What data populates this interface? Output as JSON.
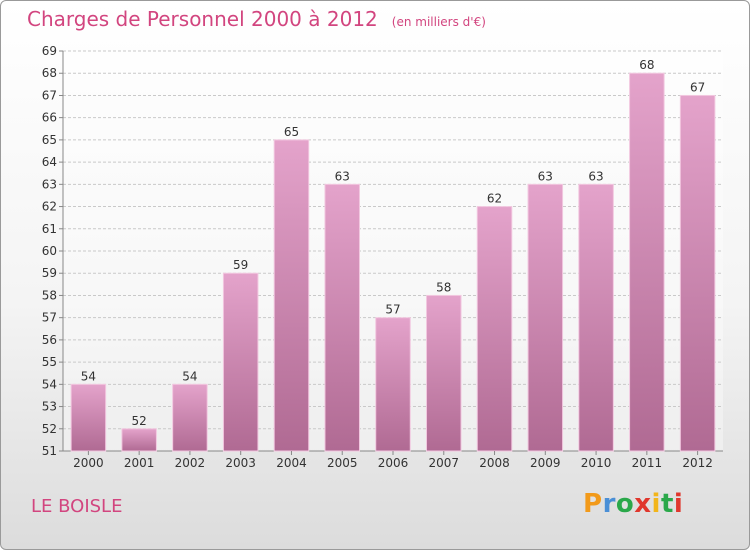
{
  "header": {
    "title": "Charges de Personnel 2000 à 2012",
    "unit": "(en milliers d'€)"
  },
  "footer": {
    "commune": "LE BOISLE",
    "logo_letters": [
      "P",
      "r",
      "o",
      "x",
      "i",
      "t",
      "i"
    ],
    "logo_colors": [
      "#f29a1a",
      "#4a8fd6",
      "#2aa84a",
      "#e0372d",
      "#f2b51a",
      "#2aa84a",
      "#e0372d"
    ]
  },
  "colors": {
    "title": "#d2457f",
    "bar_top": "#e4a3cb",
    "bar_bottom": "#b06a93",
    "grid": "#c9c9c9"
  },
  "chart_data": {
    "type": "bar",
    "title": "Charges de Personnel 2000 à 2012",
    "categories": [
      "2000",
      "2001",
      "2002",
      "2003",
      "2004",
      "2005",
      "2006",
      "2007",
      "2008",
      "2009",
      "2010",
      "2011",
      "2012"
    ],
    "values": [
      54,
      52,
      54,
      59,
      65,
      63,
      57,
      58,
      62,
      63,
      63,
      68,
      67
    ],
    "ylim": [
      51,
      69
    ],
    "yticks": [
      51,
      52,
      53,
      54,
      55,
      56,
      57,
      58,
      59,
      60,
      61,
      62,
      63,
      64,
      65,
      66,
      67,
      68,
      69
    ],
    "grid": true,
    "xlabel": "",
    "ylabel": ""
  }
}
